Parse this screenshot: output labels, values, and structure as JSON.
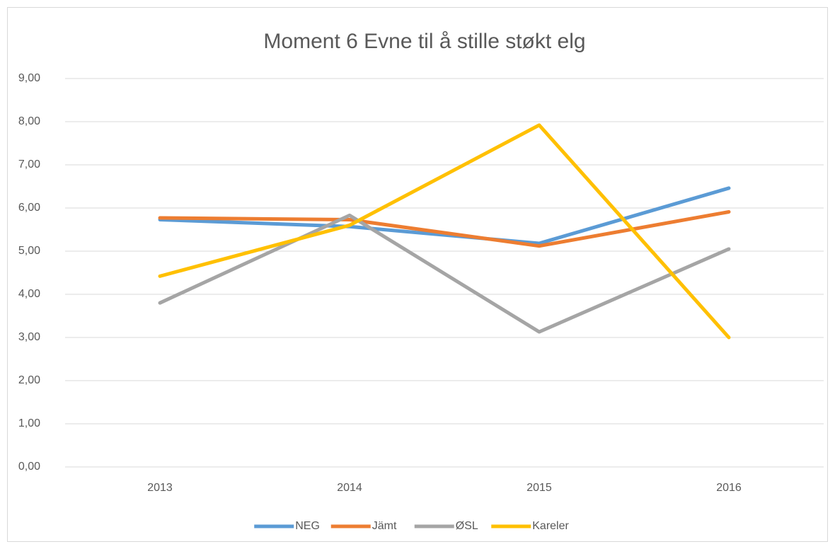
{
  "chart_data": {
    "type": "line",
    "title": "Moment 6 Evne til å stille støkt elg",
    "categories": [
      "2013",
      "2014",
      "2015",
      "2016"
    ],
    "series": [
      {
        "name": "NEG",
        "color": "#5b9bd5",
        "values": [
          5.73,
          5.57,
          5.18,
          6.46
        ]
      },
      {
        "name": "Jämt",
        "color": "#ed7d31",
        "values": [
          5.77,
          5.73,
          5.12,
          5.91
        ]
      },
      {
        "name": "ØSL",
        "color": "#a5a5a5",
        "values": [
          3.8,
          5.83,
          3.13,
          5.05
        ]
      },
      {
        "name": "Kareler",
        "color": "#ffc000",
        "values": [
          4.42,
          5.6,
          7.92,
          3.0
        ]
      }
    ],
    "ylim": [
      0,
      9
    ],
    "yticks": [
      {
        "value": 0,
        "label": "0,00"
      },
      {
        "value": 1,
        "label": "1,00"
      },
      {
        "value": 2,
        "label": "2,00"
      },
      {
        "value": 3,
        "label": "3,00"
      },
      {
        "value": 4,
        "label": "4,00"
      },
      {
        "value": 5,
        "label": "5,00"
      },
      {
        "value": 6,
        "label": "6,00"
      },
      {
        "value": 7,
        "label": "7,00"
      },
      {
        "value": 8,
        "label": "8,00"
      },
      {
        "value": 9,
        "label": "9,00"
      }
    ],
    "grid": true,
    "legend": "bottom"
  }
}
